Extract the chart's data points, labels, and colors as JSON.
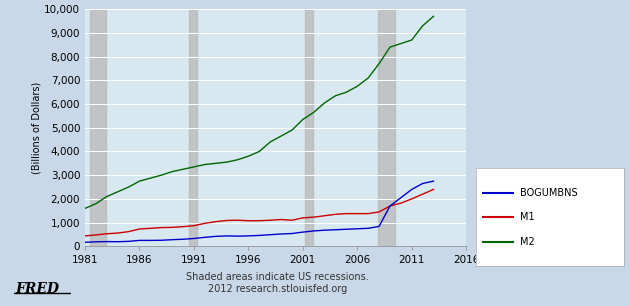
{
  "title": "",
  "ylabel": "(Billions of Dollars)",
  "xlabel": "",
  "xlim": [
    1981,
    2016
  ],
  "ylim": [
    0,
    10000
  ],
  "yticks": [
    0,
    1000,
    2000,
    3000,
    4000,
    5000,
    6000,
    7000,
    8000,
    9000,
    10000
  ],
  "xticks": [
    1981,
    1986,
    1991,
    1996,
    2001,
    2006,
    2011,
    2016
  ],
  "background_color": "#c8d8e8",
  "plot_bg_color": "#d8e8f0",
  "recession_color": "#b8b8b8",
  "recession_alpha": 0.75,
  "recessions": [
    [
      1981.5,
      1982.9
    ],
    [
      1990.5,
      1991.3
    ],
    [
      2001.2,
      2001.9
    ],
    [
      2007.9,
      2009.5
    ]
  ],
  "legend_labels": [
    "BOGUMBNS",
    "M1",
    "M2"
  ],
  "legend_colors": [
    "#0000cc",
    "#cc0000",
    "#006600"
  ],
  "footer_text": "Shaded areas indicate US recessions.\n2012 research.stlouisfed.org",
  "fred_text": "FRED",
  "m2_data_x": [
    1981,
    1982,
    1983,
    1984,
    1985,
    1986,
    1987,
    1988,
    1989,
    1990,
    1991,
    1992,
    1993,
    1994,
    1995,
    1996,
    1997,
    1998,
    1999,
    2000,
    2001,
    2002,
    2003,
    2004,
    2005,
    2006,
    2007,
    2008,
    2009,
    2010,
    2011,
    2012,
    2013
  ],
  "m2_data_y": [
    1600,
    1800,
    2100,
    2300,
    2500,
    2750,
    2875,
    3000,
    3150,
    3250,
    3350,
    3450,
    3500,
    3550,
    3650,
    3800,
    4000,
    4400,
    4650,
    4900,
    5350,
    5650,
    6050,
    6350,
    6500,
    6750,
    7100,
    7700,
    8400,
    8550,
    8700,
    9300,
    9700
  ],
  "m1_data_x": [
    1981,
    1982,
    1983,
    1984,
    1985,
    1986,
    1987,
    1988,
    1989,
    1990,
    1991,
    1992,
    1993,
    1994,
    1995,
    1996,
    1997,
    1998,
    1999,
    2000,
    2001,
    2002,
    2003,
    2004,
    2005,
    2006,
    2007,
    2008,
    2009,
    2010,
    2011,
    2012,
    2013
  ],
  "m1_data_y": [
    440,
    480,
    530,
    560,
    620,
    730,
    760,
    790,
    800,
    830,
    870,
    970,
    1040,
    1090,
    1100,
    1080,
    1080,
    1100,
    1130,
    1100,
    1200,
    1230,
    1290,
    1350,
    1380,
    1380,
    1380,
    1450,
    1700,
    1820,
    2000,
    2200,
    2400
  ],
  "bogumbns_data_x": [
    1981,
    1982,
    1983,
    1984,
    1985,
    1986,
    1987,
    1988,
    1989,
    1990,
    1991,
    1992,
    1993,
    1994,
    1995,
    1996,
    1997,
    1998,
    1999,
    2000,
    2001,
    2002,
    2003,
    2004,
    2005,
    2006,
    2007,
    2008,
    2009,
    2010,
    2011,
    2012,
    2013
  ],
  "bogumbns_data_y": [
    170,
    190,
    200,
    195,
    210,
    250,
    250,
    255,
    280,
    300,
    330,
    380,
    420,
    440,
    430,
    440,
    460,
    490,
    520,
    540,
    600,
    650,
    680,
    700,
    720,
    740,
    760,
    840,
    1700,
    2050,
    2400,
    2650,
    2750
  ]
}
